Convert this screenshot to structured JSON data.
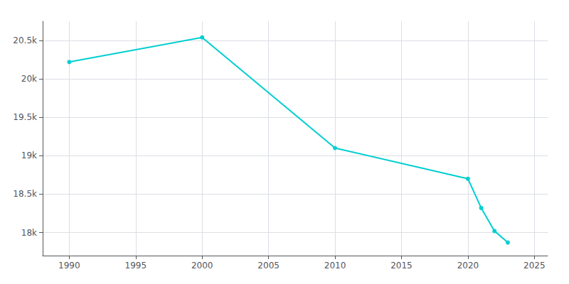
{
  "chart_data": {
    "type": "line",
    "x": [
      1990,
      2000,
      2010,
      2020,
      2021,
      2022,
      2023
    ],
    "values": [
      20220,
      20540,
      19100,
      18700,
      18320,
      18020,
      17870
    ],
    "color": "#00CED1",
    "marker": "circle",
    "xlim": [
      1988,
      2026
    ],
    "xticks": [
      1990,
      1995,
      2000,
      2005,
      2010,
      2015,
      2020,
      2025
    ],
    "ylim": [
      17700,
      20750
    ],
    "yticks": [
      {
        "value": 18000,
        "label": "18k"
      },
      {
        "value": 18500,
        "label": "18.5k"
      },
      {
        "value": 19000,
        "label": "19k"
      },
      {
        "value": 19500,
        "label": "19.5k"
      },
      {
        "value": 20000,
        "label": "20k"
      },
      {
        "value": 20500,
        "label": "20.5k"
      }
    ],
    "grid": true
  }
}
